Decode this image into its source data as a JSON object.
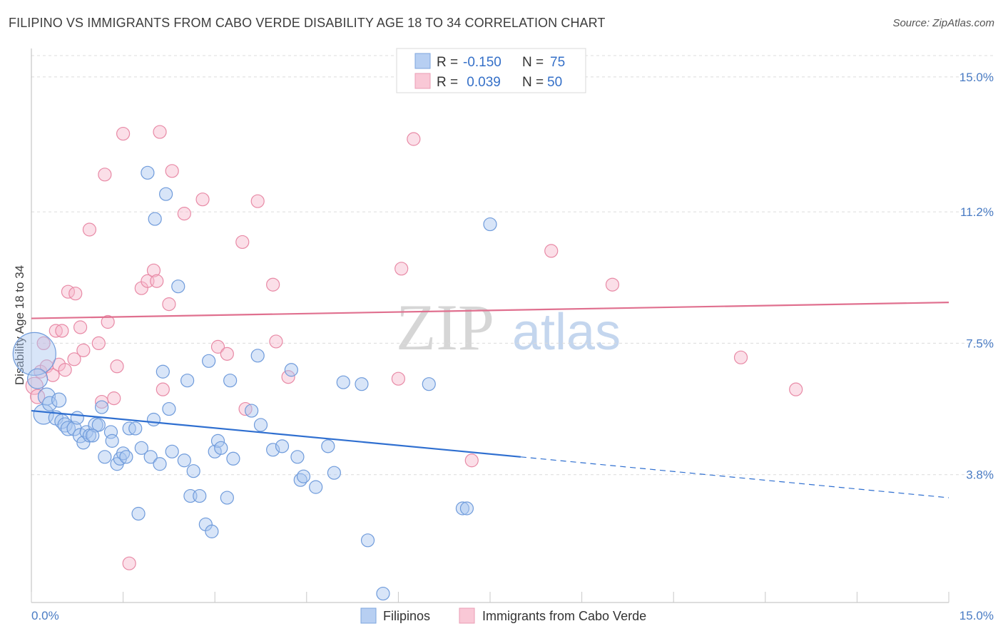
{
  "title": "FILIPINO VS IMMIGRANTS FROM CABO VERDE DISABILITY AGE 18 TO 34 CORRELATION CHART",
  "source": "Source: ZipAtlas.com",
  "watermark": {
    "zip": "ZIP",
    "atlas": "atlas"
  },
  "legend": {
    "rows": [
      {
        "r_label": "R =",
        "r_value": "-0.150",
        "n_label": "N =",
        "n_value": "75"
      },
      {
        "r_label": "R =",
        "r_value": " 0.039",
        "n_label": "N =",
        "n_value": "50"
      }
    ]
  },
  "chart_data": {
    "type": "scatter",
    "xlabel": "",
    "ylabel": "Disability Age 18 to 34",
    "xlim": [
      0,
      15
    ],
    "ylim": [
      0.2,
      15.8
    ],
    "x_tick_labels": [
      "0.0%",
      "15.0%"
    ],
    "y_ticks": [
      3.8,
      7.5,
      11.2,
      15.0
    ],
    "y_tick_labels": [
      "3.8%",
      "7.5%",
      "11.2%",
      "15.0%"
    ],
    "grid": "horizontal dashed",
    "legend_position": "top-center",
    "colors": {
      "filipinos": "#8fb5e8",
      "filipinos_line": "#2f6fd0",
      "cabo": "#f4a8c0",
      "cabo_line": "#e0708f"
    },
    "series": [
      {
        "name": "Filipinos",
        "trend": {
          "x0": 0,
          "y0": 5.6,
          "x1": 8.0,
          "y1": 4.3,
          "x_end": 15,
          "y_end": 3.15
        },
        "points": [
          [
            0.05,
            7.2,
            30
          ],
          [
            0.1,
            6.5,
            14
          ],
          [
            0.2,
            5.5,
            14
          ],
          [
            0.25,
            6.0,
            12
          ],
          [
            0.3,
            5.8,
            10
          ],
          [
            0.4,
            5.4,
            10
          ],
          [
            0.45,
            5.9,
            10
          ],
          [
            0.5,
            5.3,
            10
          ],
          [
            0.55,
            5.2,
            10
          ],
          [
            0.6,
            5.1,
            10
          ],
          [
            0.7,
            5.1,
            10
          ],
          [
            0.75,
            5.4,
            9
          ],
          [
            0.8,
            4.9,
            10
          ],
          [
            0.85,
            4.7,
            9
          ],
          [
            0.9,
            5.0,
            9
          ],
          [
            0.95,
            4.9,
            9
          ],
          [
            1.05,
            5.2,
            10
          ],
          [
            1.1,
            5.2,
            9
          ],
          [
            1.15,
            5.7,
            9
          ],
          [
            1.2,
            4.3,
            9
          ],
          [
            1.3,
            5.0,
            9
          ],
          [
            1.32,
            4.75,
            9
          ],
          [
            1.4,
            4.1,
            9
          ],
          [
            1.45,
            4.25,
            9
          ],
          [
            1.5,
            4.4,
            9
          ],
          [
            1.55,
            4.3,
            9
          ],
          [
            1.6,
            5.1,
            9
          ],
          [
            1.7,
            5.1,
            9
          ],
          [
            1.75,
            2.7,
            9
          ],
          [
            1.8,
            4.55,
            9
          ],
          [
            1.9,
            12.3,
            9
          ],
          [
            1.95,
            4.3,
            9
          ],
          [
            2.0,
            5.35,
            9
          ],
          [
            2.02,
            11.0,
            9
          ],
          [
            2.1,
            4.1,
            9
          ],
          [
            2.15,
            6.7,
            9
          ],
          [
            2.2,
            11.7,
            9
          ],
          [
            2.25,
            5.65,
            9
          ],
          [
            2.3,
            4.45,
            9
          ],
          [
            2.4,
            9.1,
            9
          ],
          [
            2.5,
            4.2,
            9
          ],
          [
            2.55,
            6.45,
            9
          ],
          [
            2.6,
            3.2,
            9
          ],
          [
            2.65,
            3.9,
            9
          ],
          [
            2.75,
            3.2,
            9
          ],
          [
            2.85,
            2.4,
            9
          ],
          [
            2.9,
            7.0,
            9
          ],
          [
            2.95,
            2.2,
            9
          ],
          [
            3.0,
            4.45,
            9
          ],
          [
            3.05,
            4.75,
            9
          ],
          [
            3.1,
            4.55,
            9
          ],
          [
            3.2,
            3.15,
            9
          ],
          [
            3.25,
            6.45,
            9
          ],
          [
            3.3,
            4.25,
            9
          ],
          [
            3.6,
            5.6,
            9
          ],
          [
            3.7,
            7.15,
            9
          ],
          [
            3.75,
            5.2,
            9
          ],
          [
            3.95,
            4.5,
            9
          ],
          [
            4.1,
            4.6,
            9
          ],
          [
            4.25,
            6.75,
            9
          ],
          [
            4.35,
            4.3,
            9
          ],
          [
            4.4,
            3.65,
            9
          ],
          [
            4.45,
            3.75,
            9
          ],
          [
            4.65,
            3.45,
            9
          ],
          [
            4.85,
            4.6,
            9
          ],
          [
            4.95,
            3.85,
            9
          ],
          [
            5.1,
            6.4,
            9
          ],
          [
            5.4,
            6.35,
            9
          ],
          [
            5.5,
            1.95,
            9
          ],
          [
            5.75,
            0.45,
            9
          ],
          [
            6.5,
            6.35,
            9
          ],
          [
            7.05,
            2.85,
            9
          ],
          [
            7.12,
            2.85,
            9
          ],
          [
            7.5,
            10.85,
            9
          ],
          [
            1.0,
            4.9,
            9
          ]
        ]
      },
      {
        "name": "Immigrants from Cabo Verde",
        "trend": {
          "x0": 0,
          "y0": 8.2,
          "x1": 15,
          "y1": 8.65
        },
        "points": [
          [
            0.05,
            6.3,
            12
          ],
          [
            0.1,
            6.0,
            10
          ],
          [
            0.15,
            6.7,
            9
          ],
          [
            0.2,
            7.5,
            9
          ],
          [
            0.25,
            6.85,
            9
          ],
          [
            0.35,
            6.6,
            9
          ],
          [
            0.4,
            7.85,
            9
          ],
          [
            0.45,
            6.9,
            9
          ],
          [
            0.5,
            7.85,
            9
          ],
          [
            0.55,
            6.75,
            9
          ],
          [
            0.6,
            8.95,
            9
          ],
          [
            0.7,
            7.05,
            9
          ],
          [
            0.72,
            8.9,
            9
          ],
          [
            0.8,
            7.95,
            9
          ],
          [
            0.85,
            7.3,
            9
          ],
          [
            0.95,
            10.7,
            9
          ],
          [
            1.1,
            7.5,
            9
          ],
          [
            1.15,
            5.85,
            9
          ],
          [
            1.2,
            12.25,
            9
          ],
          [
            1.25,
            8.1,
            9
          ],
          [
            1.35,
            5.95,
            9
          ],
          [
            1.4,
            6.85,
            9
          ],
          [
            1.5,
            13.4,
            9
          ],
          [
            1.6,
            1.3,
            9
          ],
          [
            1.8,
            9.05,
            9
          ],
          [
            1.9,
            9.25,
            9
          ],
          [
            2.0,
            9.55,
            9
          ],
          [
            2.05,
            9.25,
            9
          ],
          [
            2.1,
            13.45,
            9
          ],
          [
            2.15,
            6.2,
            9
          ],
          [
            2.25,
            8.6,
            9
          ],
          [
            2.3,
            12.35,
            9
          ],
          [
            2.5,
            11.15,
            9
          ],
          [
            2.8,
            11.55,
            9
          ],
          [
            3.05,
            7.4,
            9
          ],
          [
            3.2,
            7.2,
            9
          ],
          [
            3.45,
            10.35,
            9
          ],
          [
            3.5,
            5.65,
            9
          ],
          [
            3.7,
            11.5,
            9
          ],
          [
            3.95,
            9.15,
            9
          ],
          [
            4.0,
            7.55,
            9
          ],
          [
            4.2,
            6.55,
            9
          ],
          [
            6.0,
            6.5,
            9
          ],
          [
            6.05,
            9.6,
            9
          ],
          [
            6.25,
            13.25,
            9
          ],
          [
            7.2,
            4.2,
            9
          ],
          [
            8.5,
            10.1,
            9
          ],
          [
            9.5,
            9.15,
            9
          ],
          [
            11.6,
            7.1,
            9
          ],
          [
            12.5,
            6.2,
            9
          ]
        ]
      }
    ]
  },
  "bottom_legend": [
    {
      "label": "Filipinos"
    },
    {
      "label": "Immigrants from Cabo Verde"
    }
  ]
}
